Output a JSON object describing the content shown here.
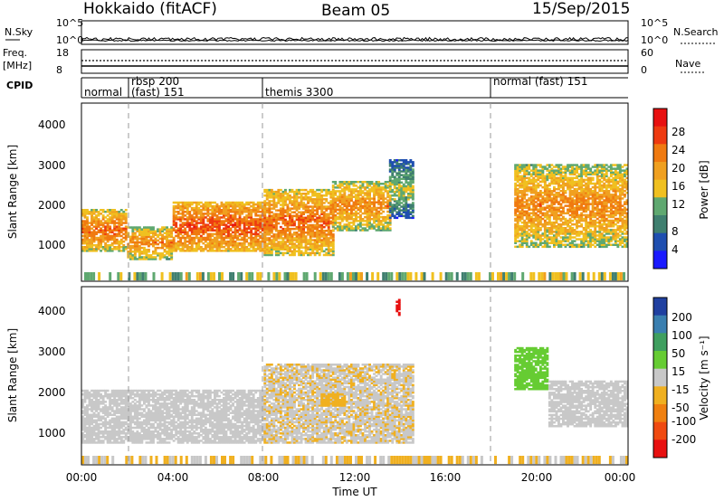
{
  "header": {
    "radar": "Hokkaido (fitACF)",
    "beam": "Beam 05",
    "date": "15/Sep/2015"
  },
  "noise_panel": {
    "left_label": "N.Sky",
    "left_ticks": [
      "10^5",
      "10^0"
    ],
    "right_ticks": [
      "10^5",
      "10^0"
    ],
    "right_label": "N.Search"
  },
  "freq_panel": {
    "label_line1": "Freq.",
    "label_line2": "[MHz]",
    "left_ticks": [
      "18",
      "8"
    ],
    "right_ticks": [
      "60",
      "0"
    ],
    "right_label": "Nave"
  },
  "cpid": {
    "label": "CPID",
    "segments": [
      {
        "text": "normal",
        "start": 0.0
      },
      {
        "text": "rbsp 200",
        "start": 1.75
      },
      {
        "text": "(fast) 151",
        "start": 1.75
      },
      {
        "text": "themis 3300",
        "start": 8.0
      },
      {
        "text": "normal (fast) 151",
        "start": 18.0
      }
    ]
  },
  "axes": {
    "xlabel": "Time UT",
    "xticks": [
      "00:00",
      "04:00",
      "08:00",
      "12:00",
      "16:00",
      "20:00",
      "00:00"
    ],
    "ylabel": "Slant Range [km]",
    "yticks": [
      "1000",
      "2000",
      "3000",
      "4000"
    ]
  },
  "colorbars": {
    "power": {
      "label": "Power [dB]",
      "ticks": [
        "4",
        "8",
        "12",
        "16",
        "20",
        "24",
        "28"
      ],
      "colors": [
        "#1a1aff",
        "#1f4fb0",
        "#3f7f6f",
        "#5fa870",
        "#f0c020",
        "#f0a020",
        "#f07a10",
        "#ee3a10",
        "#e81010"
      ]
    },
    "velocity": {
      "label": "Velocity [m s⁻¹]",
      "ticks": [
        "200",
        "100",
        "50",
        "15",
        "-15",
        "-50",
        "-100",
        "-200"
      ],
      "colors": [
        "#2040a0",
        "#3a7fb0",
        "#3f9f5f",
        "#66cc33",
        "#c8c8c8",
        "#f0b020",
        "#f08010",
        "#f04a10",
        "#e81010"
      ]
    }
  },
  "chart_data": [
    {
      "type": "heatmap",
      "panel": "power",
      "x_range_hours": [
        0,
        24
      ],
      "y_range_km": [
        180,
        4500
      ],
      "zlim_db": [
        0,
        30
      ],
      "grid": "dashed vertical lines at CPID changes",
      "echo_regions": [
        {
          "t_start": 0.0,
          "t_end": 2.0,
          "r_min": 900,
          "r_max": 1900,
          "power": 24
        },
        {
          "t_start": 2.0,
          "t_end": 4.0,
          "r_min": 700,
          "r_max": 1500,
          "power": 22
        },
        {
          "t_start": 4.0,
          "t_end": 8.0,
          "r_min": 900,
          "r_max": 2100,
          "power": 26
        },
        {
          "t_start": 8.0,
          "t_end": 11.0,
          "r_min": 800,
          "r_max": 2400,
          "power": 24
        },
        {
          "t_start": 11.0,
          "t_end": 13.5,
          "r_min": 1400,
          "r_max": 2600,
          "power": 22
        },
        {
          "t_start": 13.5,
          "t_end": 14.5,
          "r_min": 1700,
          "r_max": 3100,
          "power": 14
        },
        {
          "t_start": 19.0,
          "t_end": 24.0,
          "r_min": 1000,
          "r_max": 3000,
          "power": 22
        }
      ]
    },
    {
      "type": "heatmap",
      "panel": "velocity",
      "x_range_hours": [
        0,
        24
      ],
      "y_range_km": [
        180,
        4500
      ],
      "zlim_ms": [
        -200,
        200
      ],
      "grid": "dashed vertical lines at CPID changes",
      "echo_regions": [
        {
          "t_start": 0.0,
          "t_end": 8.0,
          "r_min": 700,
          "r_max": 2000,
          "velocity": 0
        },
        {
          "t_start": 8.0,
          "t_end": 14.5,
          "r_min": 700,
          "r_max": 2600,
          "velocity": -10
        },
        {
          "t_start": 10.5,
          "t_end": 11.5,
          "r_min": 1600,
          "r_max": 1900,
          "velocity": -40
        },
        {
          "t_start": 19.0,
          "t_end": 20.5,
          "r_min": 2000,
          "r_max": 3000,
          "velocity": 40
        },
        {
          "t_start": 20.5,
          "t_end": 24.0,
          "r_min": 1100,
          "r_max": 2200,
          "velocity": 0
        },
        {
          "t_start": 13.8,
          "t_end": 14.0,
          "r_min": 3800,
          "r_max": 4200,
          "velocity": -220
        }
      ]
    }
  ]
}
